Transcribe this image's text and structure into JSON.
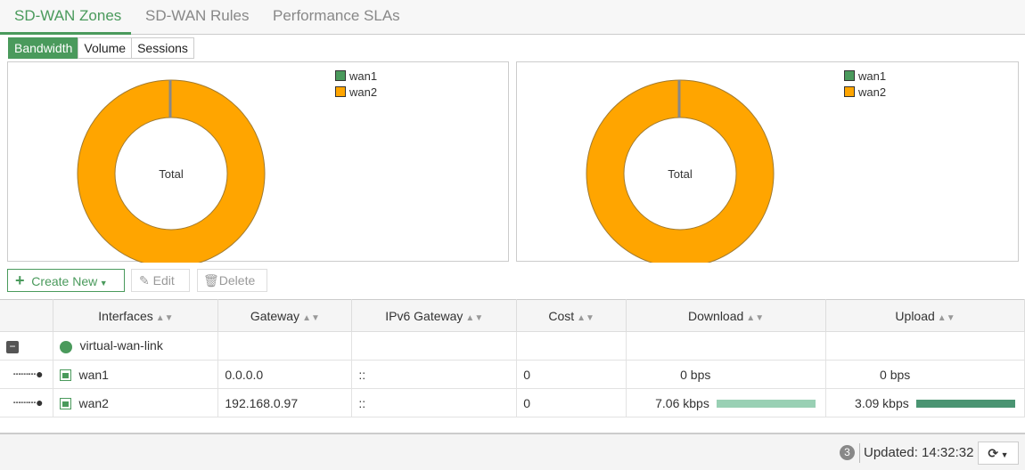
{
  "tabs": [
    "SD-WAN Zones",
    "SD-WAN Rules",
    "Performance SLAs"
  ],
  "view_toggle": [
    "Bandwidth",
    "Volume",
    "Sessions"
  ],
  "colors": {
    "accent": "#4a9a5c",
    "wan1": "#4a9a5c",
    "wan2": "#ffa500",
    "download_bar": "#99d0b4",
    "upload_bar": "#4a9472"
  },
  "charts": [
    {
      "center_label": "Total",
      "legend": [
        "wan1",
        "wan2"
      ],
      "values": {
        "wan1": 0,
        "wan2": 7.06
      }
    },
    {
      "center_label": "Total",
      "legend": [
        "wan1",
        "wan2"
      ],
      "values": {
        "wan1": 0,
        "wan2": 3.09
      }
    }
  ],
  "toolbar": {
    "create": "Create New",
    "edit": "Edit",
    "delete": "Delete"
  },
  "table": {
    "headers": [
      "Interfaces",
      "Gateway",
      "IPv6 Gateway",
      "Cost",
      "Download",
      "Upload"
    ],
    "parent": "virtual-wan-link",
    "rows": [
      {
        "name": "wan1",
        "gateway": "0.0.0.0",
        "ipv6": "::",
        "cost": "0",
        "download": "0 bps",
        "upload": "0 bps",
        "download_pct": 0,
        "upload_pct": 0
      },
      {
        "name": "wan2",
        "gateway": "192.168.0.97",
        "ipv6": "::",
        "cost": "0",
        "download": "7.06 kbps",
        "upload": "3.09 kbps",
        "download_pct": 100,
        "upload_pct": 100
      }
    ]
  },
  "footer": {
    "badge": "3",
    "updated": "Updated: 14:32:32"
  }
}
